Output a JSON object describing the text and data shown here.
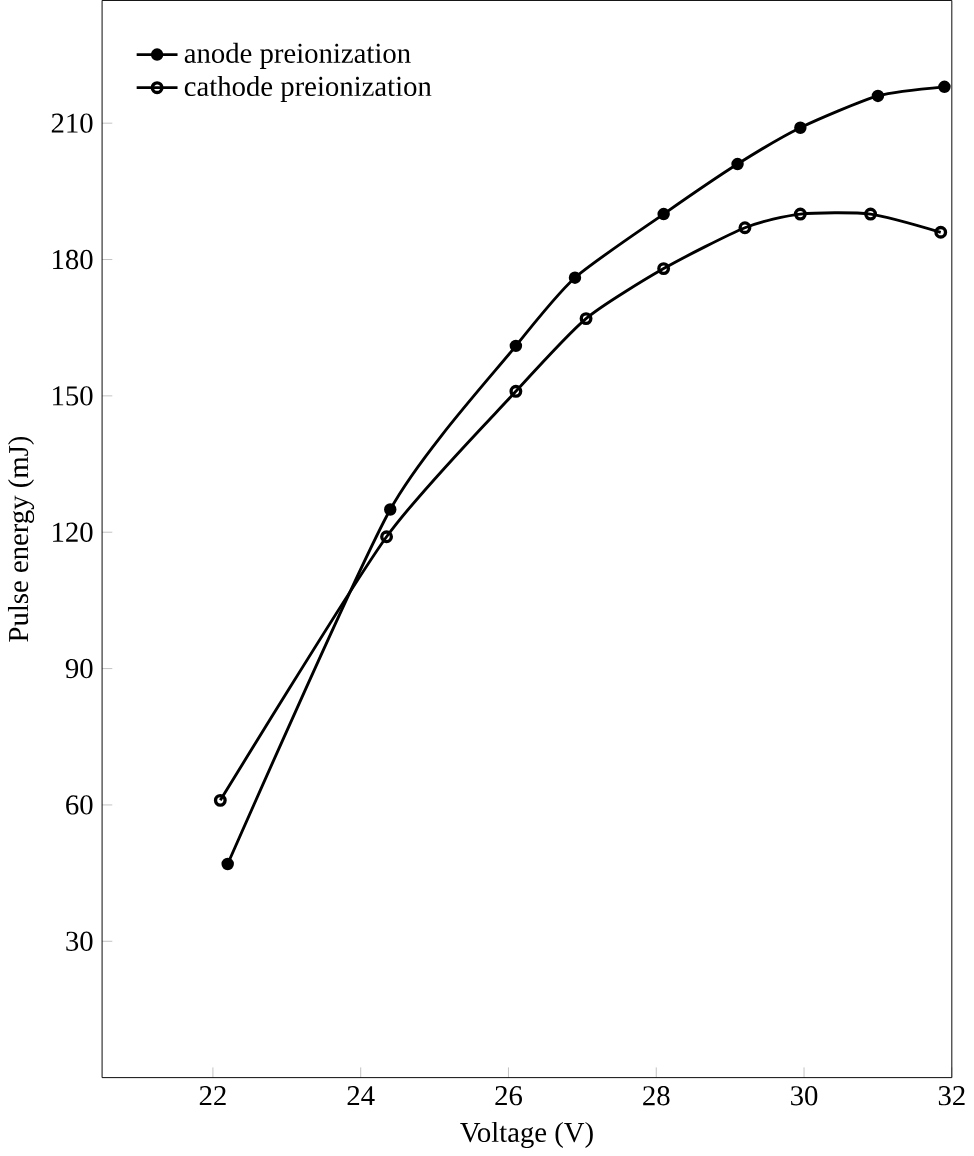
{
  "chart_data": {
    "type": "line",
    "xlabel": "Voltage (V)",
    "ylabel": "Pulse energy (mJ)",
    "xlim": [
      20.5,
      32
    ],
    "ylim": [
      0,
      237
    ],
    "xticks": [
      22,
      24,
      26,
      28,
      30,
      32
    ],
    "yticks": [
      30,
      60,
      90,
      120,
      150,
      180,
      210
    ],
    "legend": "top left",
    "grid": false,
    "series": [
      {
        "name": "anode preionization",
        "color": "#000000",
        "marker": "circle",
        "x": [
          22.2,
          24.4,
          26.1,
          26.9,
          28.1,
          29.1,
          29.95,
          31.0,
          31.9
        ],
        "values": [
          47,
          125,
          161,
          176,
          190,
          201,
          209,
          216,
          218
        ]
      },
      {
        "name": "cathode preionization",
        "color": "#000000",
        "marker": "open circle",
        "x": [
          22.1,
          24.35,
          26.1,
          27.05,
          28.1,
          29.2,
          29.95,
          30.9,
          31.85
        ],
        "values": [
          61,
          119,
          151,
          167,
          178,
          187,
          190,
          190,
          186
        ]
      }
    ]
  }
}
